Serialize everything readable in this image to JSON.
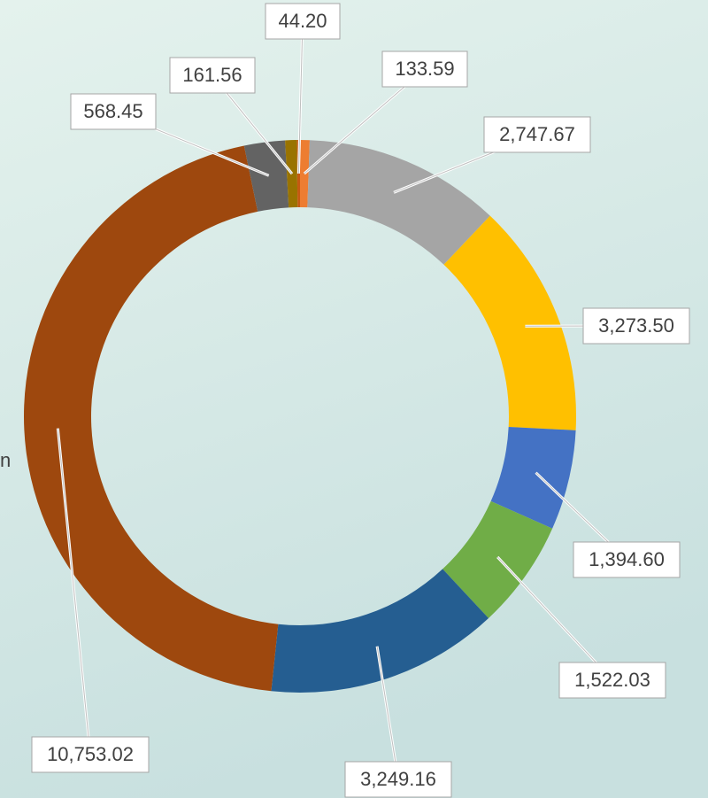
{
  "chart_data": {
    "type": "donut",
    "values": [
      133.59,
      2747.67,
      3273.5,
      1394.6,
      1522.03,
      3249.16,
      10753.02,
      568.45,
      161.56,
      44.2
    ],
    "value_labels": [
      "133.59",
      "2,747.67",
      "3,273.50",
      "1,394.60",
      "1,522.03",
      "3,249.16",
      "10,753.02",
      "568.45",
      "161.56",
      "44.20"
    ],
    "colors": [
      "#ed7d31",
      "#a5a5a5",
      "#ffc000",
      "#4472c4",
      "#70ad47",
      "#255e91",
      "#9e480e",
      "#636363",
      "#997300",
      "#c55a11"
    ],
    "clipped_text": "n"
  }
}
